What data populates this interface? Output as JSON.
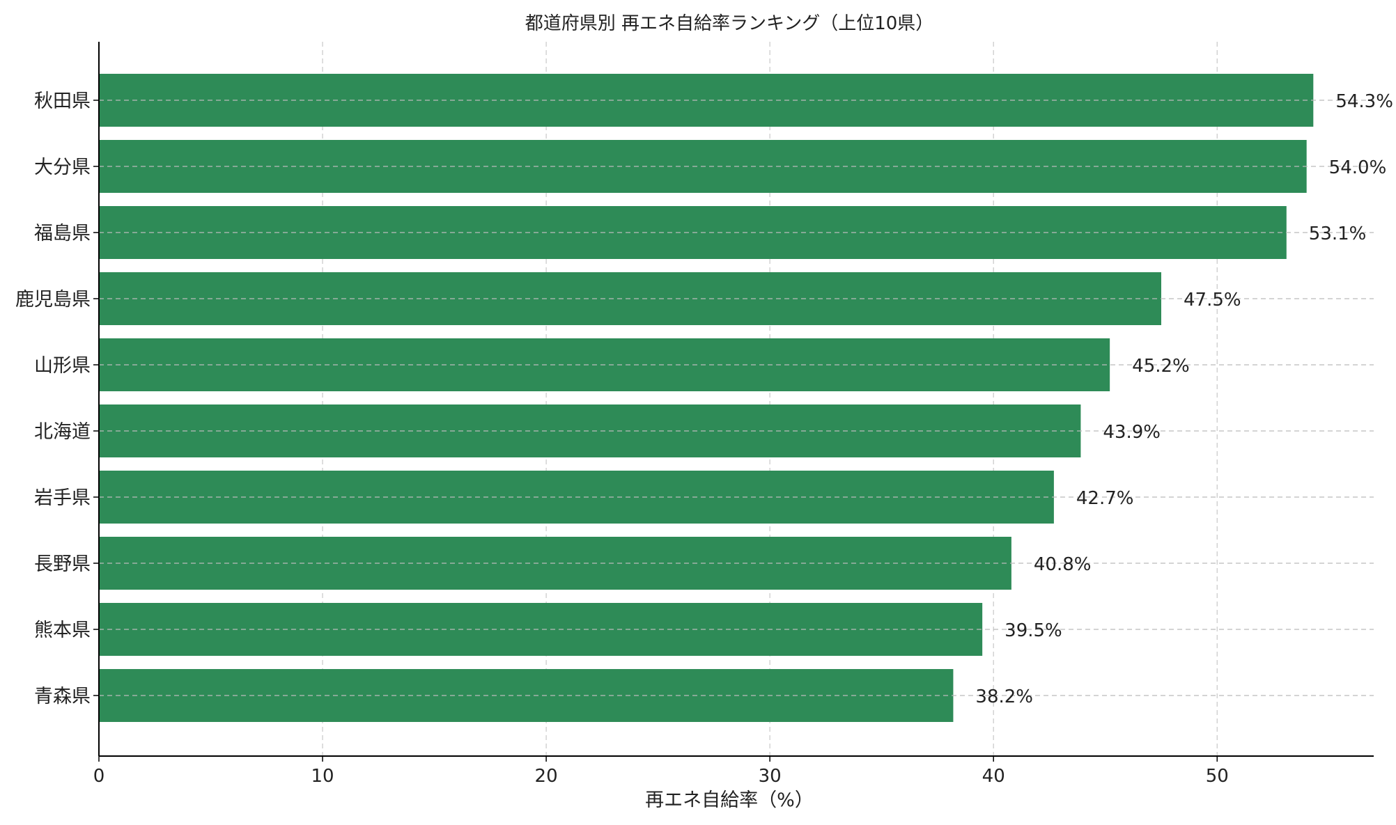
{
  "chart_data": {
    "type": "bar",
    "orientation": "horizontal",
    "title": "都道府県別 再エネ自給率ランキング（上位10県）",
    "xlabel": "再エネ自給率（%）",
    "ylabel": "",
    "xlim": [
      0,
      57
    ],
    "xticks": [
      0,
      10,
      20,
      30,
      40,
      50
    ],
    "grid": true,
    "bar_color": "#2e8b57",
    "categories": [
      "秋田県",
      "大分県",
      "福島県",
      "鹿児島県",
      "山形県",
      "北海道",
      "岩手県",
      "長野県",
      "熊本県",
      "青森県"
    ],
    "values": [
      54.3,
      54.0,
      53.1,
      47.5,
      45.2,
      43.9,
      42.7,
      40.8,
      39.5,
      38.2
    ],
    "value_labels": [
      "54.3%",
      "54.0%",
      "53.1%",
      "47.5%",
      "45.2%",
      "43.9%",
      "42.7%",
      "40.8%",
      "39.5%",
      "38.2%"
    ]
  }
}
